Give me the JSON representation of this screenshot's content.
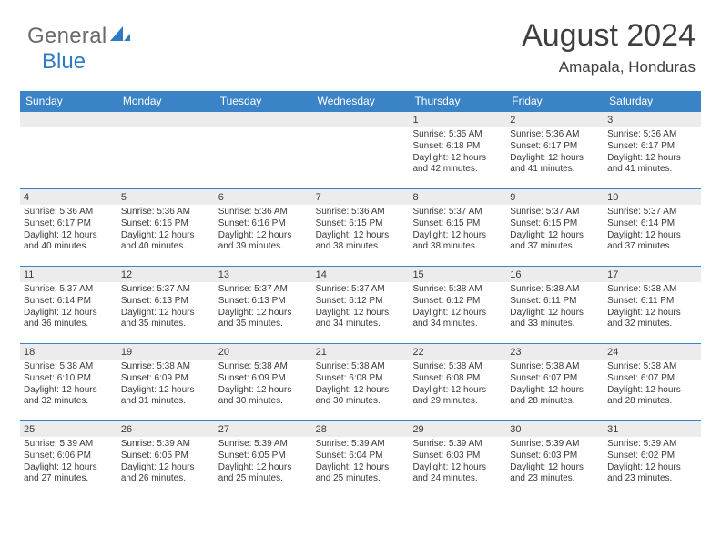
{
  "logo": {
    "text1": "General",
    "text2": "Blue"
  },
  "title": "August 2024",
  "location": "Amapala, Honduras",
  "colors": {
    "header_bg": "#3b83c7",
    "header_text": "#ffffff",
    "row_divider": "#3b83c7",
    "daynum_bg": "#ececec",
    "body_text": "#3a3a3a",
    "logo_gray": "#6b6b6b",
    "logo_blue": "#2f78c4",
    "page_bg": "#ffffff"
  },
  "day_headers": [
    "Sunday",
    "Monday",
    "Tuesday",
    "Wednesday",
    "Thursday",
    "Friday",
    "Saturday"
  ],
  "weeks": [
    [
      {
        "day": "",
        "sunrise": "",
        "sunset": "",
        "daylight": ""
      },
      {
        "day": "",
        "sunrise": "",
        "sunset": "",
        "daylight": ""
      },
      {
        "day": "",
        "sunrise": "",
        "sunset": "",
        "daylight": ""
      },
      {
        "day": "",
        "sunrise": "",
        "sunset": "",
        "daylight": ""
      },
      {
        "day": "1",
        "sunrise": "Sunrise: 5:35 AM",
        "sunset": "Sunset: 6:18 PM",
        "daylight": "Daylight: 12 hours and 42 minutes."
      },
      {
        "day": "2",
        "sunrise": "Sunrise: 5:36 AM",
        "sunset": "Sunset: 6:17 PM",
        "daylight": "Daylight: 12 hours and 41 minutes."
      },
      {
        "day": "3",
        "sunrise": "Sunrise: 5:36 AM",
        "sunset": "Sunset: 6:17 PM",
        "daylight": "Daylight: 12 hours and 41 minutes."
      }
    ],
    [
      {
        "day": "4",
        "sunrise": "Sunrise: 5:36 AM",
        "sunset": "Sunset: 6:17 PM",
        "daylight": "Daylight: 12 hours and 40 minutes."
      },
      {
        "day": "5",
        "sunrise": "Sunrise: 5:36 AM",
        "sunset": "Sunset: 6:16 PM",
        "daylight": "Daylight: 12 hours and 40 minutes."
      },
      {
        "day": "6",
        "sunrise": "Sunrise: 5:36 AM",
        "sunset": "Sunset: 6:16 PM",
        "daylight": "Daylight: 12 hours and 39 minutes."
      },
      {
        "day": "7",
        "sunrise": "Sunrise: 5:36 AM",
        "sunset": "Sunset: 6:15 PM",
        "daylight": "Daylight: 12 hours and 38 minutes."
      },
      {
        "day": "8",
        "sunrise": "Sunrise: 5:37 AM",
        "sunset": "Sunset: 6:15 PM",
        "daylight": "Daylight: 12 hours and 38 minutes."
      },
      {
        "day": "9",
        "sunrise": "Sunrise: 5:37 AM",
        "sunset": "Sunset: 6:15 PM",
        "daylight": "Daylight: 12 hours and 37 minutes."
      },
      {
        "day": "10",
        "sunrise": "Sunrise: 5:37 AM",
        "sunset": "Sunset: 6:14 PM",
        "daylight": "Daylight: 12 hours and 37 minutes."
      }
    ],
    [
      {
        "day": "11",
        "sunrise": "Sunrise: 5:37 AM",
        "sunset": "Sunset: 6:14 PM",
        "daylight": "Daylight: 12 hours and 36 minutes."
      },
      {
        "day": "12",
        "sunrise": "Sunrise: 5:37 AM",
        "sunset": "Sunset: 6:13 PM",
        "daylight": "Daylight: 12 hours and 35 minutes."
      },
      {
        "day": "13",
        "sunrise": "Sunrise: 5:37 AM",
        "sunset": "Sunset: 6:13 PM",
        "daylight": "Daylight: 12 hours and 35 minutes."
      },
      {
        "day": "14",
        "sunrise": "Sunrise: 5:37 AM",
        "sunset": "Sunset: 6:12 PM",
        "daylight": "Daylight: 12 hours and 34 minutes."
      },
      {
        "day": "15",
        "sunrise": "Sunrise: 5:38 AM",
        "sunset": "Sunset: 6:12 PM",
        "daylight": "Daylight: 12 hours and 34 minutes."
      },
      {
        "day": "16",
        "sunrise": "Sunrise: 5:38 AM",
        "sunset": "Sunset: 6:11 PM",
        "daylight": "Daylight: 12 hours and 33 minutes."
      },
      {
        "day": "17",
        "sunrise": "Sunrise: 5:38 AM",
        "sunset": "Sunset: 6:11 PM",
        "daylight": "Daylight: 12 hours and 32 minutes."
      }
    ],
    [
      {
        "day": "18",
        "sunrise": "Sunrise: 5:38 AM",
        "sunset": "Sunset: 6:10 PM",
        "daylight": "Daylight: 12 hours and 32 minutes."
      },
      {
        "day": "19",
        "sunrise": "Sunrise: 5:38 AM",
        "sunset": "Sunset: 6:09 PM",
        "daylight": "Daylight: 12 hours and 31 minutes."
      },
      {
        "day": "20",
        "sunrise": "Sunrise: 5:38 AM",
        "sunset": "Sunset: 6:09 PM",
        "daylight": "Daylight: 12 hours and 30 minutes."
      },
      {
        "day": "21",
        "sunrise": "Sunrise: 5:38 AM",
        "sunset": "Sunset: 6:08 PM",
        "daylight": "Daylight: 12 hours and 30 minutes."
      },
      {
        "day": "22",
        "sunrise": "Sunrise: 5:38 AM",
        "sunset": "Sunset: 6:08 PM",
        "daylight": "Daylight: 12 hours and 29 minutes."
      },
      {
        "day": "23",
        "sunrise": "Sunrise: 5:38 AM",
        "sunset": "Sunset: 6:07 PM",
        "daylight": "Daylight: 12 hours and 28 minutes."
      },
      {
        "day": "24",
        "sunrise": "Sunrise: 5:38 AM",
        "sunset": "Sunset: 6:07 PM",
        "daylight": "Daylight: 12 hours and 28 minutes."
      }
    ],
    [
      {
        "day": "25",
        "sunrise": "Sunrise: 5:39 AM",
        "sunset": "Sunset: 6:06 PM",
        "daylight": "Daylight: 12 hours and 27 minutes."
      },
      {
        "day": "26",
        "sunrise": "Sunrise: 5:39 AM",
        "sunset": "Sunset: 6:05 PM",
        "daylight": "Daylight: 12 hours and 26 minutes."
      },
      {
        "day": "27",
        "sunrise": "Sunrise: 5:39 AM",
        "sunset": "Sunset: 6:05 PM",
        "daylight": "Daylight: 12 hours and 25 minutes."
      },
      {
        "day": "28",
        "sunrise": "Sunrise: 5:39 AM",
        "sunset": "Sunset: 6:04 PM",
        "daylight": "Daylight: 12 hours and 25 minutes."
      },
      {
        "day": "29",
        "sunrise": "Sunrise: 5:39 AM",
        "sunset": "Sunset: 6:03 PM",
        "daylight": "Daylight: 12 hours and 24 minutes."
      },
      {
        "day": "30",
        "sunrise": "Sunrise: 5:39 AM",
        "sunset": "Sunset: 6:03 PM",
        "daylight": "Daylight: 12 hours and 23 minutes."
      },
      {
        "day": "31",
        "sunrise": "Sunrise: 5:39 AM",
        "sunset": "Sunset: 6:02 PM",
        "daylight": "Daylight: 12 hours and 23 minutes."
      }
    ]
  ]
}
